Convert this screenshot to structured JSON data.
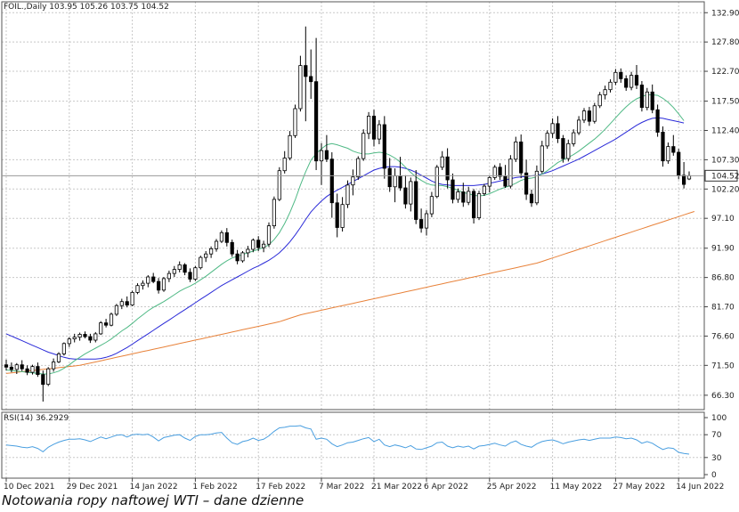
{
  "header": {
    "symbol_line": "FOIL.,Daily  103.95 105.26 103.75 104.52",
    "rsi_label": "RSI(14) 36.2929"
  },
  "caption": "Notowania ropy naftowej WTI – dane dzienne",
  "colors": {
    "ma_fast": "#4fb985",
    "ma_mid": "#2a2ad8",
    "ma_slow": "#e8823a",
    "rsi": "#4a9fe0",
    "candle": "#000000",
    "grid": "#c8c8c8",
    "current_price_line": "#9a9a9a"
  },
  "chart_data": {
    "type": "candlestick",
    "title": "FOIL.,Daily",
    "ohlc_last": {
      "open": 103.95,
      "high": 105.26,
      "low": 103.75,
      "close": 104.52
    },
    "current_price": 104.52,
    "y_ticks": [
      "132.90",
      "127.80",
      "122.70",
      "117.50",
      "112.40",
      "107.30",
      "102.20",
      "97.10",
      "91.90",
      "86.80",
      "81.70",
      "76.60",
      "71.50",
      "66.30"
    ],
    "ylim": [
      63.8,
      134.8
    ],
    "x_labels": [
      "10 Dec 2021",
      "29 Dec 2021",
      "14 Jan 2022",
      "1 Feb 2022",
      "17 Feb 2022",
      "7 Mar 2022",
      "21 Mar 2022",
      "6 Apr 2022",
      "25 Apr 2022",
      "11 May 2022",
      "27 May 2022",
      "14 Jun 2022"
    ],
    "x_label_index": [
      0,
      12,
      24,
      36,
      48,
      60,
      70,
      80,
      92,
      104,
      116,
      128
    ],
    "candles": [
      [
        71.6,
        72.5,
        70.6,
        71.2
      ],
      [
        71.2,
        72.0,
        70.3,
        70.8
      ],
      [
        70.8,
        71.9,
        70.0,
        71.6
      ],
      [
        71.6,
        72.4,
        70.5,
        70.9
      ],
      [
        70.9,
        71.5,
        69.8,
        70.3
      ],
      [
        70.3,
        71.6,
        69.9,
        71.3
      ],
      [
        71.3,
        72.0,
        69.5,
        69.9
      ],
      [
        69.9,
        70.6,
        65.2,
        68.2
      ],
      [
        68.2,
        71.2,
        67.9,
        70.9
      ],
      [
        70.9,
        72.7,
        70.4,
        72.1
      ],
      [
        72.1,
        73.8,
        71.9,
        73.5
      ],
      [
        73.5,
        75.5,
        73.2,
        75.3
      ],
      [
        75.3,
        76.4,
        74.7,
        76.1
      ],
      [
        76.1,
        77.0,
        75.5,
        76.4
      ],
      [
        76.4,
        77.2,
        75.8,
        76.9
      ],
      [
        76.9,
        77.4,
        76.2,
        76.5
      ],
      [
        76.5,
        77.0,
        75.4,
        75.9
      ],
      [
        75.9,
        77.3,
        75.5,
        77.0
      ],
      [
        77.0,
        79.2,
        76.8,
        78.9
      ],
      [
        78.9,
        79.6,
        78.1,
        78.5
      ],
      [
        78.5,
        80.7,
        78.3,
        80.4
      ],
      [
        80.4,
        82.2,
        80.1,
        81.9
      ],
      [
        81.9,
        83.1,
        81.3,
        82.6
      ],
      [
        82.6,
        83.5,
        81.6,
        82.0
      ],
      [
        82.0,
        84.5,
        81.8,
        84.2
      ],
      [
        84.2,
        85.8,
        83.9,
        85.4
      ],
      [
        85.4,
        86.3,
        84.7,
        85.8
      ],
      [
        85.8,
        87.2,
        85.1,
        86.9
      ],
      [
        86.9,
        87.6,
        85.8,
        86.1
      ],
      [
        86.1,
        86.7,
        84.0,
        84.6
      ],
      [
        84.6,
        86.9,
        84.3,
        86.6
      ],
      [
        86.6,
        88.0,
        86.0,
        87.5
      ],
      [
        87.5,
        88.8,
        86.9,
        88.2
      ],
      [
        88.2,
        89.6,
        87.7,
        89.0
      ],
      [
        89.0,
        89.3,
        87.2,
        87.7
      ],
      [
        87.7,
        88.4,
        86.0,
        86.5
      ],
      [
        86.5,
        88.8,
        86.2,
        88.5
      ],
      [
        88.5,
        90.6,
        88.2,
        90.3
      ],
      [
        90.3,
        91.4,
        89.5,
        90.9
      ],
      [
        90.9,
        92.2,
        90.2,
        91.8
      ],
      [
        91.8,
        93.5,
        91.3,
        93.1
      ],
      [
        93.1,
        95.0,
        92.8,
        94.6
      ],
      [
        94.6,
        95.4,
        92.2,
        92.9
      ],
      [
        92.9,
        93.4,
        90.4,
        90.9
      ],
      [
        90.9,
        91.6,
        89.1,
        89.7
      ],
      [
        89.7,
        91.4,
        89.4,
        91.1
      ],
      [
        91.1,
        92.3,
        90.3,
        91.7
      ],
      [
        91.7,
        93.6,
        91.2,
        93.3
      ],
      [
        93.3,
        94.0,
        91.4,
        92.0
      ],
      [
        92.0,
        93.2,
        91.2,
        92.6
      ],
      [
        92.6,
        96.4,
        92.1,
        95.8
      ],
      [
        95.8,
        100.9,
        95.3,
        100.4
      ],
      [
        100.4,
        106.0,
        100.1,
        105.4
      ],
      [
        105.4,
        108.8,
        104.9,
        107.6
      ],
      [
        107.6,
        112.3,
        107.2,
        111.5
      ],
      [
        111.5,
        116.9,
        111.1,
        116.2
      ],
      [
        116.2,
        125.4,
        115.7,
        123.7
      ],
      [
        123.7,
        130.5,
        114.0,
        121.8
      ],
      [
        121.8,
        126.5,
        117.9,
        120.9
      ],
      [
        120.9,
        128.5,
        105.5,
        107.1
      ],
      [
        107.1,
        110.2,
        102.9,
        108.9
      ],
      [
        108.9,
        111.6,
        106.9,
        107.4
      ],
      [
        107.4,
        108.6,
        97.2,
        99.8
      ],
      [
        99.8,
        101.4,
        93.8,
        95.5
      ],
      [
        95.5,
        100.8,
        94.8,
        99.5
      ],
      [
        99.5,
        103.7,
        98.9,
        102.9
      ],
      [
        102.9,
        105.6,
        101.1,
        104.3
      ],
      [
        104.3,
        107.9,
        103.8,
        107.5
      ],
      [
        107.5,
        112.6,
        107.1,
        111.9
      ],
      [
        111.9,
        115.6,
        110.9,
        114.9
      ],
      [
        114.9,
        116.0,
        109.6,
        110.9
      ],
      [
        110.9,
        114.2,
        110.0,
        113.4
      ],
      [
        113.4,
        114.9,
        104.0,
        105.8
      ],
      [
        105.8,
        107.6,
        101.7,
        102.6
      ],
      [
        102.6,
        105.8,
        99.9,
        104.5
      ],
      [
        104.5,
        107.8,
        101.9,
        102.4
      ],
      [
        102.4,
        104.6,
        98.8,
        99.6
      ],
      [
        99.6,
        104.2,
        98.3,
        103.5
      ],
      [
        103.5,
        105.5,
        96.1,
        96.9
      ],
      [
        96.9,
        98.8,
        94.6,
        95.4
      ],
      [
        95.4,
        98.5,
        94.1,
        97.9
      ],
      [
        97.9,
        101.7,
        97.3,
        100.9
      ],
      [
        100.9,
        106.4,
        100.6,
        106.0
      ],
      [
        106.0,
        108.8,
        105.5,
        107.8
      ],
      [
        107.8,
        109.3,
        102.3,
        103.8
      ],
      [
        103.8,
        104.9,
        99.7,
        100.4
      ],
      [
        100.4,
        102.3,
        99.8,
        101.7
      ],
      [
        101.7,
        103.3,
        99.1,
        99.9
      ],
      [
        99.9,
        102.6,
        99.4,
        101.8
      ],
      [
        101.8,
        102.2,
        96.2,
        97.2
      ],
      [
        97.2,
        101.9,
        96.8,
        101.4
      ],
      [
        101.4,
        103.1,
        101.0,
        102.7
      ],
      [
        102.7,
        104.6,
        101.6,
        104.2
      ],
      [
        104.2,
        106.4,
        103.8,
        106.0
      ],
      [
        106.0,
        106.7,
        103.8,
        104.4
      ],
      [
        104.4,
        106.4,
        102.4,
        102.7
      ],
      [
        102.7,
        108.1,
        102.3,
        107.4
      ],
      [
        107.4,
        111.3,
        106.9,
        110.4
      ],
      [
        110.4,
        111.7,
        104.1,
        105.0
      ],
      [
        105.0,
        107.3,
        100.3,
        101.3
      ],
      [
        101.3,
        102.1,
        99.1,
        99.8
      ],
      [
        99.8,
        106.3,
        99.4,
        105.3
      ],
      [
        105.3,
        110.6,
        104.9,
        109.7
      ],
      [
        109.7,
        112.4,
        109.2,
        111.9
      ],
      [
        111.9,
        114.5,
        111.1,
        113.6
      ],
      [
        113.6,
        114.9,
        110.2,
        111.0
      ],
      [
        111.0,
        111.6,
        106.8,
        107.5
      ],
      [
        107.5,
        110.8,
        107.0,
        110.1
      ],
      [
        110.1,
        112.6,
        109.6,
        112.0
      ],
      [
        112.0,
        114.9,
        111.6,
        114.2
      ],
      [
        114.2,
        116.3,
        113.7,
        115.8
      ],
      [
        115.8,
        116.5,
        113.2,
        114.0
      ],
      [
        114.0,
        117.2,
        113.6,
        116.7
      ],
      [
        116.7,
        119.1,
        116.3,
        118.6
      ],
      [
        118.6,
        120.2,
        117.8,
        119.5
      ],
      [
        119.5,
        121.3,
        119.0,
        120.8
      ],
      [
        120.8,
        123.1,
        120.3,
        122.5
      ],
      [
        122.5,
        123.2,
        120.7,
        121.4
      ],
      [
        121.4,
        122.0,
        119.3,
        119.9
      ],
      [
        119.9,
        122.6,
        119.4,
        122.0
      ],
      [
        122.0,
        123.8,
        119.6,
        120.3
      ],
      [
        120.3,
        121.0,
        115.7,
        116.4
      ],
      [
        116.4,
        119.8,
        115.9,
        119.1
      ],
      [
        119.1,
        120.4,
        115.4,
        116.0
      ],
      [
        116.0,
        116.9,
        111.3,
        112.1
      ],
      [
        112.1,
        113.1,
        106.1,
        107.1
      ],
      [
        107.1,
        110.3,
        106.6,
        109.6
      ],
      [
        109.6,
        111.6,
        108.0,
        108.6
      ],
      [
        108.6,
        109.2,
        103.9,
        104.6
      ],
      [
        104.6,
        106.9,
        102.3,
        103.0
      ],
      [
        103.95,
        105.26,
        103.75,
        104.52
      ]
    ],
    "ma_fast": [
      70.7,
      70.6,
      70.5,
      70.4,
      70.3,
      70.2,
      70.1,
      70.0,
      70.0,
      70.2,
      70.5,
      71.0,
      71.6,
      72.3,
      72.9,
      73.5,
      74.0,
      74.5,
      75.0,
      75.5,
      76.1,
      76.8,
      77.5,
      78.1,
      78.8,
      79.6,
      80.3,
      81.0,
      81.6,
      82.1,
      82.6,
      83.2,
      83.8,
      84.4,
      84.9,
      85.3,
      85.8,
      86.4,
      87.0,
      87.7,
      88.4,
      89.1,
      89.7,
      90.2,
      90.5,
      90.8,
      91.1,
      91.4,
      91.7,
      92.0,
      92.5,
      93.4,
      94.6,
      96.2,
      98.1,
      100.3,
      102.9,
      105.2,
      107.2,
      108.4,
      109.2,
      109.9,
      110.1,
      109.9,
      109.6,
      109.3,
      108.8,
      108.5,
      108.3,
      108.3,
      108.5,
      108.6,
      108.5,
      108.1,
      107.6,
      106.9,
      106.0,
      105.1,
      104.3,
      103.7,
      103.2,
      102.9,
      102.8,
      102.8,
      102.6,
      102.3,
      102.0,
      101.6,
      101.4,
      101.1,
      101.0,
      101.1,
      101.4,
      101.8,
      102.2,
      102.5,
      102.8,
      103.2,
      103.7,
      104.0,
      104.1,
      104.3,
      104.8,
      105.4,
      106.1,
      106.8,
      107.3,
      107.7,
      108.2,
      108.8,
      109.5,
      110.2,
      110.9,
      111.7,
      112.6,
      113.6,
      114.6,
      115.6,
      116.5,
      117.3,
      117.9,
      118.3,
      118.6,
      118.6,
      118.5,
      118.0,
      117.3,
      116.4,
      115.3,
      114.1
    ],
    "ma_mid": [
      77.0,
      76.6,
      76.2,
      75.8,
      75.4,
      75.0,
      74.6,
      74.2,
      73.8,
      73.5,
      73.2,
      72.9,
      72.7,
      72.6,
      72.6,
      72.6,
      72.6,
      72.6,
      72.7,
      72.9,
      73.2,
      73.6,
      74.1,
      74.6,
      75.2,
      75.8,
      76.4,
      77.0,
      77.6,
      78.2,
      78.8,
      79.4,
      80.0,
      80.6,
      81.2,
      81.8,
      82.4,
      83.0,
      83.6,
      84.2,
      84.8,
      85.4,
      85.9,
      86.4,
      86.9,
      87.4,
      87.9,
      88.4,
      88.8,
      89.3,
      89.8,
      90.4,
      91.1,
      92.0,
      93.0,
      94.2,
      95.5,
      96.9,
      98.2,
      99.2,
      100.1,
      100.9,
      101.5,
      102.0,
      102.5,
      103.0,
      103.5,
      104.0,
      104.5,
      105.0,
      105.5,
      105.8,
      106.0,
      106.1,
      106.1,
      106.0,
      105.8,
      105.5,
      105.1,
      104.6,
      104.1,
      103.6,
      103.2,
      103.0,
      102.9,
      102.8,
      102.8,
      102.8,
      102.8,
      102.8,
      102.9,
      103.0,
      103.2,
      103.4,
      103.6,
      103.8,
      104.0,
      104.2,
      104.3,
      104.4,
      104.5,
      104.6,
      104.8,
      105.1,
      105.4,
      105.8,
      106.2,
      106.6,
      107.0,
      107.4,
      107.9,
      108.4,
      108.9,
      109.4,
      109.9,
      110.4,
      110.9,
      111.5,
      112.1,
      112.7,
      113.3,
      113.8,
      114.2,
      114.5,
      114.6,
      114.5,
      114.3,
      114.1,
      113.9,
      113.7
    ],
    "ma_slow": [
      70.1,
      70.2,
      70.3,
      70.4,
      70.5,
      70.6,
      70.7,
      70.8,
      70.9,
      71.0,
      71.1,
      71.2,
      71.3,
      71.4,
      71.5,
      71.7,
      71.9,
      72.1,
      72.3,
      72.5,
      72.7,
      72.9,
      73.1,
      73.3,
      73.5,
      73.7,
      73.9,
      74.1,
      74.3,
      74.5,
      74.7,
      74.9,
      75.1,
      75.3,
      75.5,
      75.7,
      75.9,
      76.1,
      76.3,
      76.5,
      76.7,
      76.9,
      77.1,
      77.3,
      77.5,
      77.7,
      77.9,
      78.1,
      78.3,
      78.5,
      78.7,
      78.9,
      79.1,
      79.4,
      79.7,
      80.0,
      80.3,
      80.5,
      80.7,
      80.9,
      81.1,
      81.3,
      81.5,
      81.7,
      81.9,
      82.1,
      82.3,
      82.5,
      82.7,
      82.9,
      83.1,
      83.3,
      83.5,
      83.7,
      83.9,
      84.1,
      84.3,
      84.5,
      84.7,
      84.9,
      85.1,
      85.3,
      85.5,
      85.7,
      85.9,
      86.1,
      86.3,
      86.5,
      86.7,
      86.9,
      87.1,
      87.3,
      87.5,
      87.7,
      87.9,
      88.1,
      88.3,
      88.5,
      88.7,
      88.9,
      89.1,
      89.3,
      89.6,
      89.9,
      90.2,
      90.5,
      90.8,
      91.1,
      91.4,
      91.7,
      92.0,
      92.3,
      92.6,
      92.9,
      93.2,
      93.5,
      93.8,
      94.1,
      94.4,
      94.7,
      95.0,
      95.3,
      95.6,
      95.9,
      96.2,
      96.5,
      96.8,
      97.1,
      97.4,
      97.7,
      98.0,
      98.3
    ],
    "rsi": {
      "ticks": [
        100,
        70,
        30,
        0
      ],
      "ylim": [
        0,
        100
      ],
      "values": [
        52,
        51,
        50,
        48,
        47,
        49,
        46,
        40,
        48,
        53,
        57,
        60,
        62,
        62,
        63,
        61,
        58,
        62,
        66,
        63,
        66,
        69,
        70,
        66,
        70,
        71,
        70,
        71,
        66,
        59,
        65,
        67,
        69,
        70,
        64,
        60,
        67,
        70,
        70,
        71,
        73,
        74,
        64,
        56,
        53,
        58,
        60,
        64,
        60,
        62,
        68,
        76,
        82,
        83,
        85,
        85,
        86,
        82,
        80,
        62,
        64,
        62,
        54,
        49,
        52,
        56,
        57,
        60,
        63,
        65,
        58,
        62,
        52,
        49,
        52,
        50,
        47,
        51,
        45,
        44,
        47,
        50,
        56,
        57,
        50,
        47,
        50,
        48,
        50,
        45,
        50,
        51,
        53,
        55,
        52,
        50,
        56,
        59,
        53,
        50,
        48,
        54,
        58,
        60,
        61,
        58,
        54,
        57,
        59,
        61,
        62,
        60,
        62,
        64,
        64,
        64,
        66,
        65,
        63,
        64,
        61,
        55,
        58,
        55,
        49,
        44,
        47,
        46,
        39,
        37,
        36
      ]
    }
  }
}
